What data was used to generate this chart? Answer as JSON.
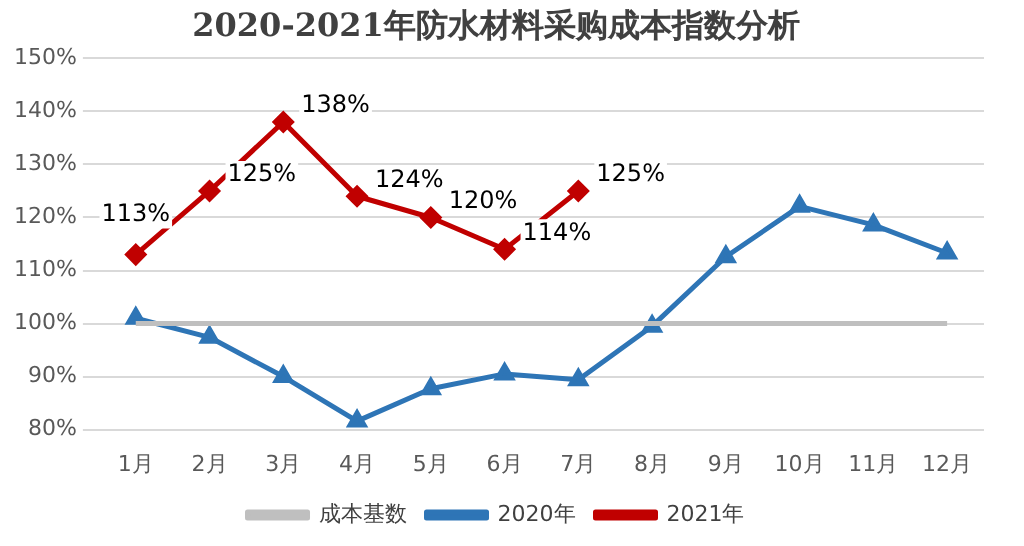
{
  "chart_data": {
    "type": "line",
    "title": "2020-2021年防水材料采购成本指数分析",
    "categories": [
      "1月",
      "2月",
      "3月",
      "4月",
      "5月",
      "6月",
      "7月",
      "8月",
      "9月",
      "10月",
      "11月",
      "12月"
    ],
    "series": [
      {
        "name": "成本基数",
        "color": "#bfbfbf",
        "marker": "none",
        "values": [
          100,
          100,
          100,
          100,
          100,
          100,
          100,
          100,
          100,
          100,
          100,
          100
        ]
      },
      {
        "name": "2020年",
        "color": "#2e75b6",
        "marker": "triangle",
        "values": [
          101,
          97.4,
          90,
          81.6,
          87.7,
          90.5,
          89.4,
          99.5,
          112.6,
          122.1,
          118.6,
          113.3
        ]
      },
      {
        "name": "2021年",
        "color": "#c00000",
        "marker": "diamond",
        "values": [
          113,
          125,
          138,
          124,
          120,
          114,
          125,
          null,
          null,
          null,
          null,
          null
        ],
        "value_labels": [
          "113%",
          "125%",
          "138%",
          "124%",
          "120%",
          "114%",
          "125%",
          null,
          null,
          null,
          null,
          null
        ]
      }
    ],
    "ylim": [
      80,
      150
    ],
    "yticks": [
      {
        "value": 80,
        "label": "80%"
      },
      {
        "value": 90,
        "label": "90%"
      },
      {
        "value": 100,
        "label": "100%"
      },
      {
        "value": 110,
        "label": "110%"
      },
      {
        "value": 120,
        "label": "120%"
      },
      {
        "value": 130,
        "label": "130%"
      },
      {
        "value": 140,
        "label": "140%"
      },
      {
        "value": 150,
        "label": "150%"
      }
    ],
    "grid": "y",
    "legend": "bottom",
    "line_style": "solid"
  }
}
